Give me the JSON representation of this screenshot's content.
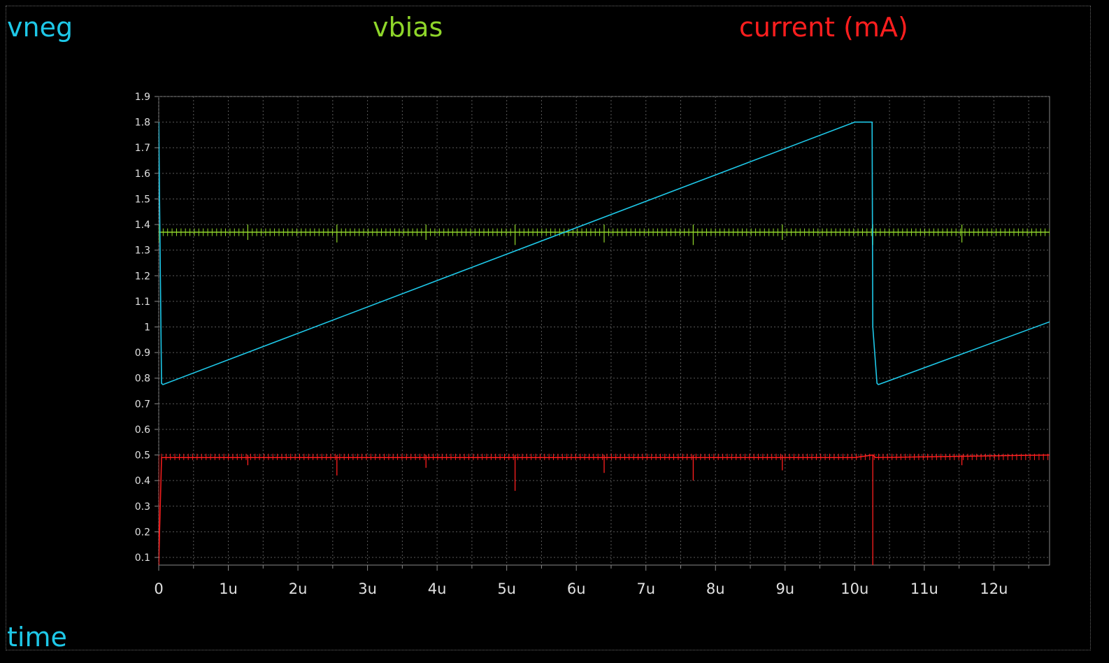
{
  "legend": {
    "vneg": "vneg",
    "vbias": "vbias",
    "current": "current (mA)",
    "xaxis": "time"
  },
  "chart_data": {
    "type": "line",
    "x_unit": "s",
    "xlim": [
      0,
      1.28e-05
    ],
    "ylim": [
      0.07,
      1.9
    ],
    "grid": true,
    "y_ticks": [
      "0.1",
      "0.2",
      "0.3",
      "0.4",
      "0.5",
      "0.6",
      "0.7",
      "0.8",
      "0.9",
      "1",
      "1.1",
      "1.2",
      "1.3",
      "1.4",
      "1.5",
      "1.6",
      "1.7",
      "1.8",
      "1.9"
    ],
    "x_ticks": [
      "0",
      "1u",
      "2u",
      "3u",
      "4u",
      "5u",
      "6u",
      "7u",
      "8u",
      "9u",
      "10u",
      "11u",
      "12u"
    ],
    "colors": {
      "vneg": "#1ec8e8",
      "vbias": "#8fd62a",
      "current": "#ff1e1e",
      "grid": "#5a5a5a",
      "axis": "#888888"
    },
    "series": [
      {
        "name": "vneg",
        "x": [
          0,
          0.0,
          4e-08,
          6e-08,
          1e-05,
          1.025e-05,
          1.026e-05,
          1.032e-05,
          1.034e-05,
          1.28e-05
        ],
        "y": [
          1.8,
          1.8,
          0.78,
          0.775,
          1.8,
          1.8,
          1.0,
          0.78,
          0.775,
          1.02
        ]
      },
      {
        "name": "vbias",
        "x": [
          0,
          1.28e-05
        ],
        "y": [
          1.37,
          1.37
        ],
        "spike_x": [
          0,
          1.28e-06,
          2.56e-06,
          3.84e-06,
          5.12e-06,
          6.4e-06,
          7.68e-06,
          8.96e-06,
          1.026e-05,
          1.154e-05
        ],
        "spike_lo": [
          1.33,
          1.34,
          1.33,
          1.34,
          1.32,
          1.33,
          1.32,
          1.34,
          1.32,
          1.33
        ],
        "spike_hi": [
          1.4,
          1.4,
          1.4,
          1.4,
          1.4,
          1.4,
          1.4,
          1.4,
          1.4,
          1.4
        ]
      },
      {
        "name": "current (mA)",
        "x": [
          0,
          4e-08,
          1e-05,
          1.026e-05,
          1.03e-05,
          1.28e-05
        ],
        "y": [
          0.07,
          0.49,
          0.49,
          0.5,
          0.49,
          0.5
        ],
        "dip_x": [
          0,
          1.28e-06,
          2.56e-06,
          3.84e-06,
          5.12e-06,
          6.4e-06,
          7.68e-06,
          8.96e-06,
          1.026e-05,
          1.154e-05
        ],
        "dip_lo": [
          0.07,
          0.46,
          0.42,
          0.45,
          0.36,
          0.43,
          0.4,
          0.44,
          0.07,
          0.46
        ]
      }
    ]
  }
}
